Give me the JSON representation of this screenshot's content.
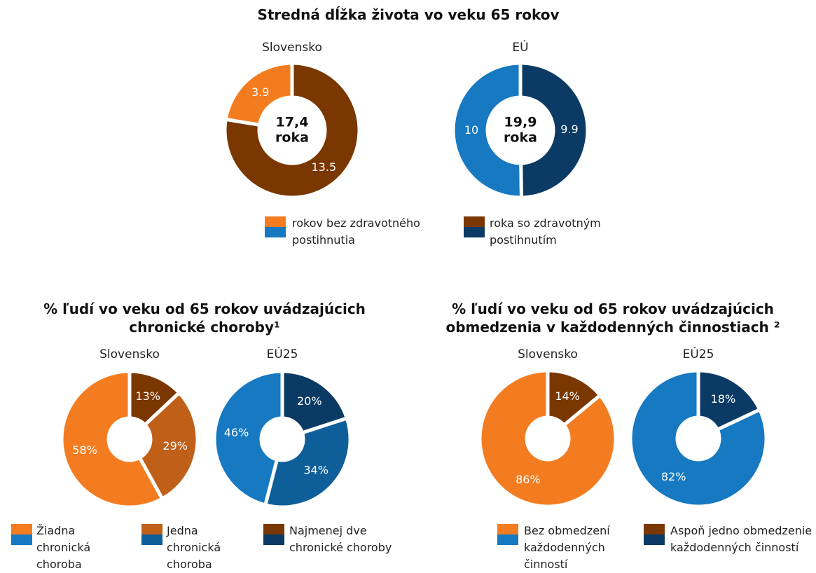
{
  "chart_data": [
    {
      "type": "donut",
      "title": "Stredná dĺžka života vo veku 65 rokov",
      "categories": [
        "rokov bez zdravotného postihnutia",
        "roka so zdravotným postihnutím"
      ],
      "series": [
        {
          "name": "Slovensko",
          "colors": [
            "#f47c20",
            "#7a3700"
          ],
          "values": [
            3.9,
            13.5
          ],
          "center_label": [
            "17,4",
            "roka"
          ]
        },
        {
          "name": "EÚ",
          "colors": [
            "#1679c2",
            "#0b3a64"
          ],
          "values": [
            10,
            9.9
          ],
          "center_label": [
            "19,9",
            "roka"
          ]
        }
      ]
    },
    {
      "type": "donut",
      "title": "% ľudí vo veku od 65 rokov uvádzajúcich chronické choroby¹",
      "categories": [
        "Žiadna chronická choroba",
        "Jedna chronická choroba",
        "Najmenej dve chronické choroby"
      ],
      "series": [
        {
          "name": "Slovensko",
          "colors": [
            "#f47c20",
            "#bf5f18",
            "#7a3700"
          ],
          "values": [
            58,
            29,
            13
          ],
          "value_labels": [
            "58%",
            "29%",
            "13%"
          ]
        },
        {
          "name": "EÚ25",
          "colors": [
            "#1679c2",
            "#0e5e99",
            "#0b3a64"
          ],
          "values": [
            46,
            34,
            20
          ],
          "value_labels": [
            "46%",
            "34%",
            "20%"
          ]
        }
      ]
    },
    {
      "type": "donut",
      "title": "% ľudí vo veku od 65 rokov uvádzajúcich obmedzenia v každodenných činnostiach ²",
      "categories": [
        "Bez obmedzení každodenných činností",
        "Aspoň jedno obmedzenie každodenných činností"
      ],
      "series": [
        {
          "name": "Slovensko",
          "colors": [
            "#f47c20",
            "#7a3700"
          ],
          "values": [
            86,
            14
          ],
          "value_labels": [
            "86%",
            "14%"
          ]
        },
        {
          "name": "EÚ25",
          "colors": [
            "#1679c2",
            "#0b3a64"
          ],
          "values": [
            82,
            18
          ],
          "value_labels": [
            "82%",
            "18%"
          ]
        }
      ]
    }
  ]
}
